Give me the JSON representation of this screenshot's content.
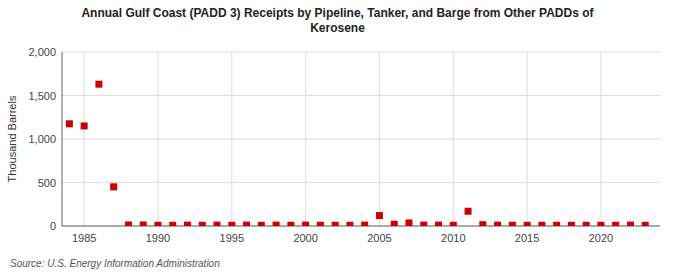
{
  "chart_data": {
    "type": "scatter",
    "title": "Annual Gulf Coast (PADD 3) Receipts by Pipeline, Tanker, and Barge from Other PADDs of\nKerosene",
    "ylabel": "Thousand Barrels",
    "source": "Source: U.S. Energy Information Administration",
    "x": [
      1984,
      1985,
      1986,
      1987,
      1988,
      1989,
      1990,
      1991,
      1992,
      1993,
      1994,
      1995,
      1996,
      1997,
      1998,
      1999,
      2000,
      2001,
      2002,
      2003,
      2004,
      2005,
      2006,
      2007,
      2008,
      2009,
      2010,
      2011,
      2012,
      2013,
      2014,
      2015,
      2016,
      2017,
      2018,
      2019,
      2020,
      2021,
      2022,
      2023
    ],
    "values": [
      1175,
      1150,
      1630,
      450,
      12,
      12,
      8,
      8,
      10,
      8,
      10,
      8,
      10,
      8,
      10,
      8,
      10,
      8,
      8,
      8,
      10,
      120,
      20,
      35,
      10,
      10,
      8,
      170,
      15,
      10,
      8,
      8,
      8,
      8,
      8,
      8,
      8,
      8,
      10,
      8
    ],
    "color": "#cc0000",
    "marker": "square",
    "xlim": [
      1983.5,
      2024
    ],
    "ylim": [
      0,
      2000
    ],
    "xticks": [
      1985,
      1990,
      1995,
      2000,
      2005,
      2010,
      2015,
      2020
    ],
    "yticks": [
      0,
      500,
      {
        "value": 1000,
        "label": "1,000"
      },
      {
        "value": 1500,
        "label": "1,500"
      },
      {
        "value": 2000,
        "label": "2,000"
      }
    ],
    "grid": true
  }
}
